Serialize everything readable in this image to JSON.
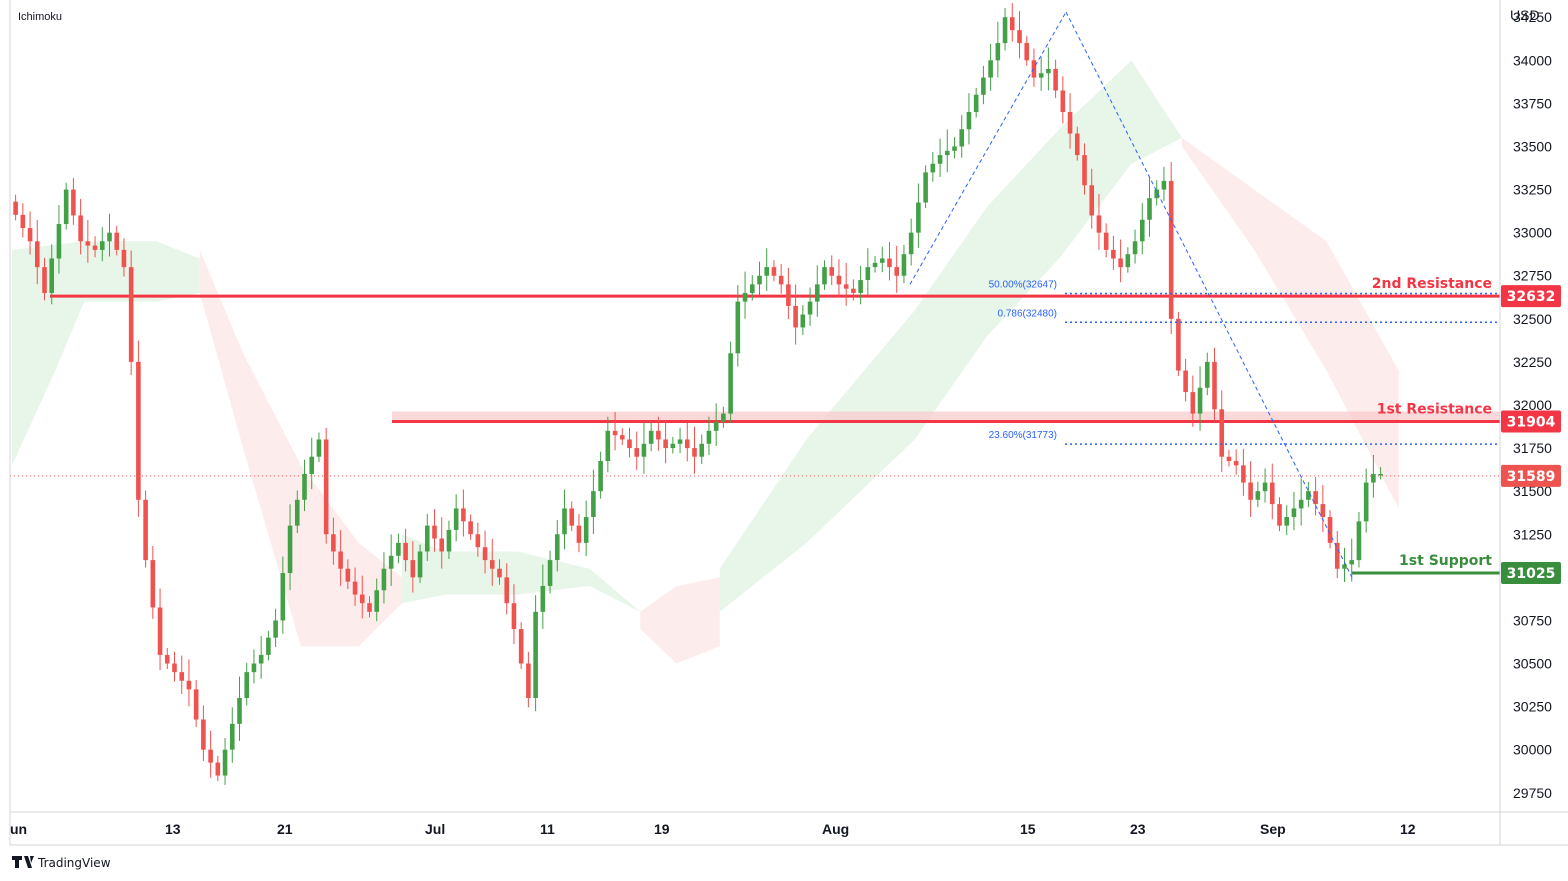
{
  "chart_data": {
    "type": "candlestick",
    "indicator": "Ichimoku",
    "currency": "USD",
    "x_labels": [
      "un",
      "13",
      "21",
      "Jul",
      "11",
      "19",
      "Aug",
      "15",
      "23",
      "Sep",
      "12"
    ],
    "y_ticks": [
      34250,
      34000,
      33750,
      33500,
      33250,
      33000,
      32750,
      32500,
      32250,
      32000,
      31750,
      31500,
      31250,
      31000,
      30750,
      30500,
      30250,
      30000,
      29750
    ],
    "ylim": [
      29650,
      34350
    ],
    "current_price": 31589,
    "levels": [
      {
        "name": "2nd Resistance",
        "value": 32632,
        "color": "#f23645"
      },
      {
        "name": "1st Resistance",
        "value": 31904,
        "color": "#f23645"
      },
      {
        "name": "1st Support",
        "value": 31025,
        "color": "#388e3c"
      }
    ],
    "fib_levels": [
      {
        "label": "50.00%(32647)",
        "value": 32647
      },
      {
        "label": "0.786(32480)",
        "value": 32480
      },
      {
        "label": "23.60%(31773)",
        "value": 31773
      }
    ],
    "price_path": [
      [
        0,
        33180
      ],
      [
        3,
        32950
      ],
      [
        5,
        32650
      ],
      [
        8,
        33250
      ],
      [
        10,
        32950
      ],
      [
        12,
        32900
      ],
      [
        14,
        33000
      ],
      [
        16,
        32800
      ],
      [
        17,
        32250
      ],
      [
        18,
        31450
      ],
      [
        19,
        31100
      ],
      [
        21,
        30550
      ],
      [
        23,
        30450
      ],
      [
        25,
        30350
      ],
      [
        27,
        30000
      ],
      [
        29,
        29850
      ],
      [
        31,
        30150
      ],
      [
        33,
        30450
      ],
      [
        35,
        30550
      ],
      [
        37,
        30750
      ],
      [
        39,
        31300
      ],
      [
        41,
        31600
      ],
      [
        43,
        31800
      ],
      [
        44,
        31250
      ],
      [
        46,
        31050
      ],
      [
        48,
        30900
      ],
      [
        50,
        30800
      ],
      [
        52,
        31050
      ],
      [
        54,
        31200
      ],
      [
        56,
        31000
      ],
      [
        58,
        31300
      ],
      [
        60,
        31150
      ],
      [
        62,
        31400
      ],
      [
        64,
        31250
      ],
      [
        66,
        31100
      ],
      [
        68,
        31000
      ],
      [
        70,
        30700
      ],
      [
        72,
        30300
      ],
      [
        73,
        30800
      ],
      [
        75,
        31100
      ],
      [
        77,
        31400
      ],
      [
        79,
        31200
      ],
      [
        81,
        31500
      ],
      [
        83,
        31850
      ],
      [
        85,
        31800
      ],
      [
        87,
        31700
      ],
      [
        89,
        31850
      ],
      [
        91,
        31750
      ],
      [
        93,
        31800
      ],
      [
        95,
        31700
      ],
      [
        97,
        31850
      ],
      [
        99,
        31950
      ],
      [
        100,
        32300
      ],
      [
        101,
        32600
      ],
      [
        103,
        32700
      ],
      [
        105,
        32800
      ],
      [
        107,
        32700
      ],
      [
        109,
        32450
      ],
      [
        111,
        32600
      ],
      [
        113,
        32800
      ],
      [
        115,
        32700
      ],
      [
        117,
        32650
      ],
      [
        119,
        32800
      ],
      [
        121,
        32850
      ],
      [
        123,
        32750
      ],
      [
        125,
        33000
      ],
      [
        127,
        33350
      ],
      [
        129,
        33450
      ],
      [
        131,
        33500
      ],
      [
        133,
        33700
      ],
      [
        135,
        33900
      ],
      [
        137,
        34100
      ],
      [
        138,
        34250
      ],
      [
        140,
        34100
      ],
      [
        142,
        33900
      ],
      [
        144,
        33950
      ],
      [
        146,
        33700
      ],
      [
        148,
        33450
      ],
      [
        150,
        33100
      ],
      [
        152,
        32900
      ],
      [
        154,
        32800
      ],
      [
        156,
        32950
      ],
      [
        158,
        33200
      ],
      [
        160,
        33300
      ],
      [
        161,
        32500
      ],
      [
        162,
        32200
      ],
      [
        164,
        31950
      ],
      [
        166,
        32250
      ],
      [
        168,
        31700
      ],
      [
        170,
        31650
      ],
      [
        172,
        31450
      ],
      [
        174,
        31550
      ],
      [
        176,
        31300
      ],
      [
        178,
        31400
      ],
      [
        180,
        31500
      ],
      [
        182,
        31350
      ],
      [
        184,
        31050
      ],
      [
        186,
        31100
      ],
      [
        188,
        31550
      ],
      [
        189,
        31600
      ]
    ],
    "cloud_segments": [
      {
        "color": "green",
        "upper": [
          [
            0,
            32900
          ],
          [
            10,
            32950
          ],
          [
            20,
            32950
          ],
          [
            26,
            32850
          ]
        ],
        "lower": [
          [
            0,
            31650
          ],
          [
            6,
            32200
          ],
          [
            10,
            32600
          ],
          [
            20,
            32600
          ],
          [
            26,
            32650
          ]
        ]
      },
      {
        "color": "red",
        "upper": [
          [
            26,
            32900
          ],
          [
            32,
            32300
          ],
          [
            40,
            31650
          ],
          [
            48,
            31200
          ],
          [
            54,
            31000
          ]
        ],
        "lower": [
          [
            26,
            32650
          ],
          [
            32,
            31750
          ],
          [
            40,
            30600
          ],
          [
            48,
            30600
          ],
          [
            54,
            30850
          ]
        ]
      },
      {
        "color": "green",
        "upper": [
          [
            54,
            31250
          ],
          [
            60,
            31150
          ],
          [
            70,
            31150
          ],
          [
            80,
            31050
          ],
          [
            87,
            30800
          ]
        ],
        "lower": [
          [
            54,
            30850
          ],
          [
            60,
            30900
          ],
          [
            70,
            30900
          ],
          [
            80,
            30950
          ],
          [
            87,
            30800
          ]
        ]
      },
      {
        "color": "red",
        "upper": [
          [
            87,
            30800
          ],
          [
            92,
            30950
          ],
          [
            98,
            31000
          ]
        ],
        "lower": [
          [
            87,
            30700
          ],
          [
            92,
            30500
          ],
          [
            98,
            30600
          ]
        ]
      },
      {
        "color": "green",
        "upper": [
          [
            98,
            31050
          ],
          [
            110,
            31800
          ],
          [
            125,
            32550
          ],
          [
            135,
            33150
          ],
          [
            145,
            33600
          ],
          [
            155,
            34000
          ],
          [
            162,
            33550
          ]
        ],
        "lower": [
          [
            98,
            30800
          ],
          [
            110,
            31200
          ],
          [
            125,
            31800
          ],
          [
            135,
            32400
          ],
          [
            145,
            32850
          ],
          [
            155,
            33400
          ],
          [
            162,
            33550
          ]
        ]
      },
      {
        "color": "red",
        "upper": [
          [
            162,
            33550
          ],
          [
            172,
            33250
          ],
          [
            182,
            32950
          ],
          [
            192,
            32200
          ]
        ],
        "lower": [
          [
            162,
            33500
          ],
          [
            172,
            32900
          ],
          [
            182,
            32200
          ],
          [
            192,
            31400
          ]
        ]
      }
    ]
  },
  "labels": {
    "indicator_name": "Ichimoku",
    "currency": "USD",
    "brand": "TradingView",
    "level_names": [
      "2nd Resistance",
      "1st Resistance",
      "1st Support"
    ],
    "badge_values": [
      "32632",
      "31904",
      "31589",
      "31025"
    ]
  },
  "colors": {
    "up": "#26a69a",
    "up_dark": "#43a047",
    "down": "#ef5350",
    "resistance": "#f23645",
    "support": "#388e3c",
    "fib": "#2962ff",
    "cloud_green": "#e8f5e9",
    "cloud_red": "#fdecec"
  }
}
